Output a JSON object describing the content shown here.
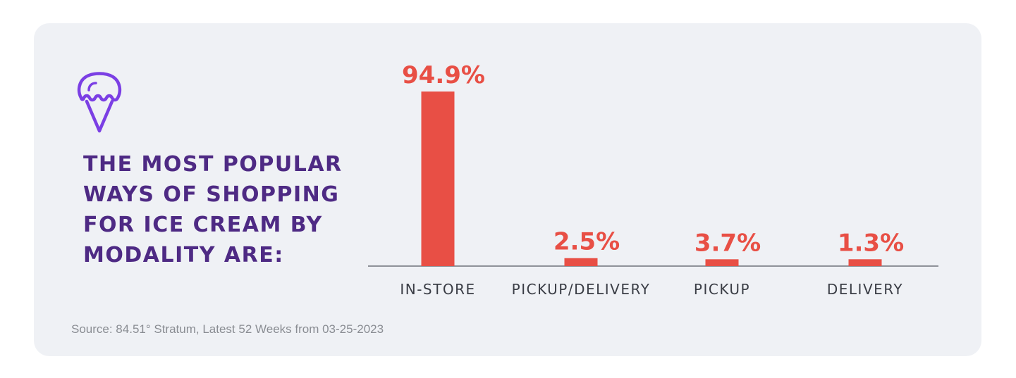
{
  "headline": "THE MOST POPULAR\nWAYS OF SHOPPING\nFOR ICE CREAM BY\nMODALITY ARE:",
  "source": "Source: 84.51° Stratum, Latest 52 Weeks from 03-25-2023",
  "icon": "ice-cream-cone-icon",
  "colors": {
    "bar": "#e84f45",
    "headline": "#4e2a84",
    "icon": "#7b3fe4",
    "category_label": "#3a3d45",
    "axis": "#8f9299",
    "background": "#eff1f5"
  },
  "chart_data": {
    "type": "bar",
    "categories": [
      "IN-STORE",
      "PICKUP/DELIVERY",
      "PICKUP",
      "DELIVERY"
    ],
    "values": [
      94.9,
      2.5,
      3.7,
      1.3
    ],
    "value_labels": [
      "94.9%",
      "2.5%",
      "3.7%",
      "1.3%"
    ],
    "title": "",
    "xlabel": "",
    "ylabel": "",
    "ylim": [
      0,
      94.9
    ],
    "grid": false,
    "legend": "none"
  }
}
